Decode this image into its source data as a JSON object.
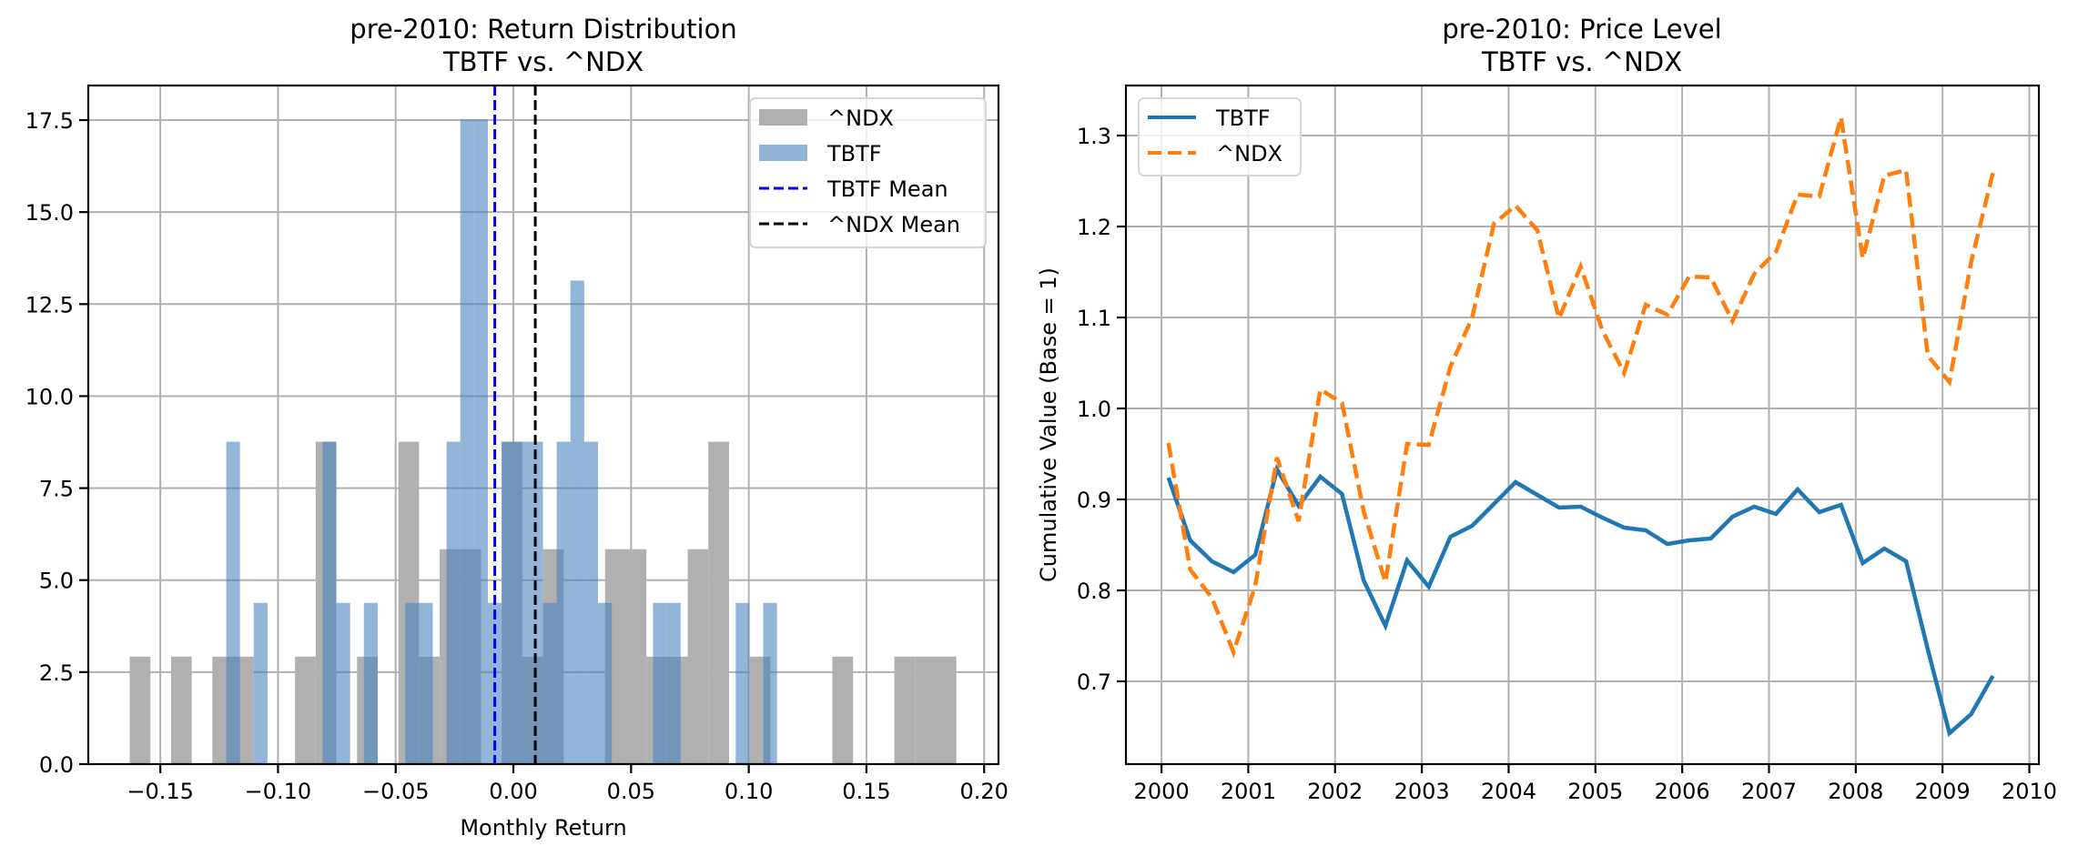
{
  "figure": {
    "left_title_line1": "pre-2010: Return Distribution",
    "left_title_line2": "TBTF vs. ^NDX",
    "right_title_line1": "pre-2010: Price Level",
    "right_title_line2": "TBTF vs. ^NDX"
  },
  "colors": {
    "ndx_hist": "#b0b0b0",
    "tbtf_hist": "#7ea7cc",
    "tbtf_mean": "#0000ff",
    "ndx_mean": "#000000",
    "tbtf_line": "#1f77b4",
    "ndx_line": "#ff7f0e",
    "grid": "#b0b0b0"
  },
  "chart_data": [
    {
      "type": "histogram",
      "title": "pre-2010: Return Distribution\nTBTF vs. ^NDX",
      "xlabel": "Monthly Return",
      "ylabel": "",
      "xlim": [
        -0.1806,
        0.2061
      ],
      "ylim": [
        0,
        18.44
      ],
      "grid": true,
      "density": true,
      "xticks": [
        -0.15,
        -0.1,
        -0.05,
        0.0,
        0.05,
        0.1,
        0.15,
        0.2
      ],
      "xtick_labels": [
        "−0.15",
        "−0.10",
        "−0.05",
        "0.00",
        "0.05",
        "0.10",
        "0.15",
        "0.20"
      ],
      "yticks": [
        0.0,
        2.5,
        5.0,
        7.5,
        10.0,
        12.5,
        15.0,
        17.5
      ],
      "ytick_labels": [
        "0.0",
        "2.5",
        "5.0",
        "7.5",
        "10.0",
        "12.5",
        "15.0",
        "17.5"
      ],
      "legend_position": "top-right",
      "series": [
        {
          "name": "^NDX",
          "kind": "hist",
          "bin_start": -0.163,
          "bin_width": 0.00878,
          "density_unit": 2.92,
          "counts": [
            1,
            0,
            1,
            0,
            1,
            1,
            0,
            0,
            1,
            3,
            0,
            1,
            0,
            3,
            1,
            2,
            2,
            0,
            3,
            1,
            2,
            0,
            0,
            2,
            2,
            1,
            1,
            2,
            3,
            0,
            1,
            0,
            0,
            0,
            1,
            0,
            0,
            1,
            1,
            1
          ]
        },
        {
          "name": "TBTF",
          "kind": "hist",
          "bin_start": -0.122,
          "bin_width": 0.00585,
          "density_unit": 4.38,
          "counts": [
            2,
            0,
            1,
            0,
            0,
            0,
            0,
            2,
            1,
            0,
            1,
            0,
            0,
            1,
            1,
            0,
            2,
            4,
            4,
            1,
            2,
            2,
            2,
            1,
            2,
            3,
            2,
            1,
            0,
            0,
            0,
            1,
            1,
            0,
            0,
            0,
            0,
            1,
            0,
            1
          ]
        },
        {
          "name": "TBTF Mean",
          "kind": "vline",
          "x": -0.0079
        },
        {
          "name": "^NDX Mean",
          "kind": "vline",
          "x": 0.0093
        }
      ]
    },
    {
      "type": "line",
      "title": "pre-2010: Price Level\nTBTF vs. ^NDX",
      "xlabel": "",
      "ylabel": "Cumulative Value (Base = 1)",
      "xlim": [
        1999.59,
        2010.11
      ],
      "ylim": [
        0.609,
        1.355
      ],
      "grid": true,
      "xticks": [
        2000,
        2001,
        2002,
        2003,
        2004,
        2005,
        2006,
        2007,
        2008,
        2009,
        2010
      ],
      "xtick_labels": [
        "2000",
        "2001",
        "2002",
        "2003",
        "2004",
        "2005",
        "2006",
        "2007",
        "2008",
        "2009",
        "2010"
      ],
      "yticks": [
        0.7,
        0.8,
        0.9,
        1.0,
        1.1,
        1.2,
        1.3
      ],
      "ytick_labels": [
        "0.7",
        "0.8",
        "0.9",
        "1.0",
        "1.1",
        "1.2",
        "1.3"
      ],
      "legend_position": "top-left",
      "x": [
        2000.08,
        2000.33,
        2000.58,
        2000.83,
        2001.08,
        2001.33,
        2001.58,
        2001.83,
        2002.08,
        2002.33,
        2002.58,
        2002.83,
        2003.08,
        2003.33,
        2003.58,
        2003.83,
        2004.08,
        2004.33,
        2004.58,
        2004.83,
        2005.08,
        2005.33,
        2005.58,
        2005.83,
        2006.08,
        2006.33,
        2006.58,
        2006.83,
        2007.08,
        2007.33,
        2007.58,
        2007.83,
        2008.08,
        2008.33,
        2008.58,
        2008.83,
        2009.08,
        2009.33,
        2009.58
      ],
      "series": [
        {
          "name": "TBTF",
          "style": "solid",
          "values": [
            0.924,
            0.855,
            0.832,
            0.82,
            0.839,
            0.933,
            0.893,
            0.925,
            0.906,
            0.811,
            0.761,
            0.833,
            0.804,
            0.859,
            0.871,
            0.895,
            0.919,
            0.905,
            0.891,
            0.892,
            0.88,
            0.869,
            0.866,
            0.851,
            0.855,
            0.857,
            0.881,
            0.892,
            0.884,
            0.911,
            0.886,
            0.894,
            0.83,
            0.846,
            0.832,
            0.735,
            0.643,
            0.664,
            0.706
          ]
        },
        {
          "name": "^NDX",
          "style": "dashed",
          "values": [
            0.962,
            0.823,
            0.792,
            0.732,
            0.805,
            0.946,
            0.876,
            1.021,
            1.006,
            0.887,
            0.809,
            0.961,
            0.96,
            1.046,
            1.1,
            1.203,
            1.223,
            1.196,
            1.099,
            1.156,
            1.086,
            1.039,
            1.114,
            1.103,
            1.145,
            1.144,
            1.096,
            1.148,
            1.172,
            1.235,
            1.233,
            1.32,
            1.165,
            1.256,
            1.262,
            1.058,
            1.029,
            1.161,
            1.259
          ]
        }
      ]
    }
  ]
}
